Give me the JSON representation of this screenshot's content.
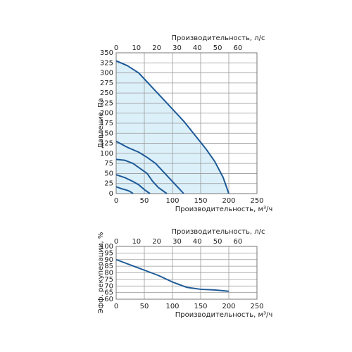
{
  "chart_data": [
    {
      "type": "line",
      "xlabel": "Производительность, м³/ч",
      "x2label": "Производительность, л/с",
      "ylabel": "Давление, Па",
      "xlim": [
        0,
        250
      ],
      "xticks": [
        0,
        50,
        100,
        150,
        200,
        250
      ],
      "x2lim": [
        0,
        69.4
      ],
      "x2ticks": [
        0,
        10,
        20,
        30,
        40,
        50,
        60
      ],
      "ylim": [
        0,
        350
      ],
      "yticks": [
        0,
        25,
        50,
        75,
        100,
        125,
        150,
        175,
        200,
        225,
        250,
        275,
        300,
        325,
        350
      ],
      "grid": true,
      "series": [
        {
          "color": "#1d5a98",
          "fill": "#dcf0fa",
          "x": [
            0,
            20,
            40,
            60,
            80,
            100,
            120,
            140,
            160,
            175,
            190,
            200
          ],
          "values": [
            330,
            318,
            300,
            270,
            240,
            210,
            180,
            145,
            110,
            80,
            40,
            0
          ]
        },
        {
          "color": "#1d5a98",
          "x": [
            0,
            20,
            40,
            55,
            70,
            80,
            90,
            100,
            110,
            120
          ],
          "values": [
            130,
            115,
            103,
            90,
            75,
            60,
            45,
            30,
            15,
            0
          ]
        },
        {
          "color": "#1d5a98",
          "x": [
            0,
            15,
            30,
            45,
            55,
            65,
            75,
            90
          ],
          "values": [
            85,
            83,
            75,
            60,
            50,
            30,
            15,
            0
          ]
        },
        {
          "color": "#1d5a98",
          "x": [
            0,
            15,
            30,
            40,
            50,
            60
          ],
          "values": [
            47,
            40,
            30,
            22,
            10,
            0
          ]
        },
        {
          "color": "#1d5a98",
          "x": [
            0,
            10,
            20,
            25,
            30
          ],
          "values": [
            17,
            12,
            8,
            5,
            0
          ]
        }
      ]
    },
    {
      "type": "line",
      "xlabel": "Производительность, м³/ч",
      "x2label": "Производительность, л/с",
      "ylabel": "Эфф. рекуперации, %",
      "xlim": [
        0,
        250
      ],
      "xticks": [
        0,
        50,
        100,
        150,
        200,
        250
      ],
      "x2lim": [
        0,
        69.4
      ],
      "x2ticks": [
        0,
        10,
        20,
        30,
        40,
        50,
        60
      ],
      "ylim": [
        60,
        100
      ],
      "yticks": [
        60,
        65,
        70,
        75,
        80,
        85,
        90,
        95,
        100
      ],
      "grid": true,
      "series": [
        {
          "color": "#1d5a98",
          "x": [
            0,
            25,
            50,
            75,
            100,
            125,
            150,
            175,
            200
          ],
          "values": [
            90,
            86,
            82,
            78,
            73,
            69,
            67.5,
            67,
            66
          ]
        }
      ]
    }
  ]
}
